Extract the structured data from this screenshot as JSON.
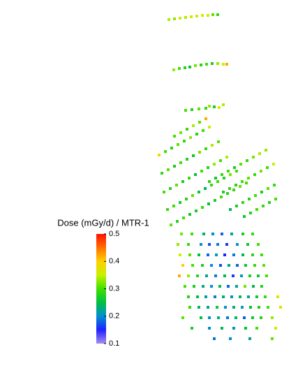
{
  "chart_data": {
    "type": "scatter",
    "colorbar_label": "Dose (mGy/d) / MTR-1",
    "clim": [
      0.1,
      0.5
    ],
    "cticks": [
      0.1,
      0.2,
      0.3,
      0.4,
      0.5
    ],
    "colormap": [
      "#a58ef0",
      "#2020ff",
      "#0090d0",
      "#00c040",
      "#40e000",
      "#c8f000",
      "#ffd000",
      "#ff7000",
      "#ff1000"
    ],
    "x": [
      242,
      250,
      258,
      266,
      274,
      282,
      290,
      298,
      305,
      312,
      249,
      257,
      265,
      272,
      280,
      288,
      296,
      304,
      312,
      320,
      325,
      266,
      275,
      285,
      295,
      300,
      307,
      314,
      320,
      250,
      259,
      268,
      277,
      286,
      295,
      228,
      237,
      246,
      255,
      264,
      273,
      282,
      291,
      300,
      232,
      241,
      250,
      259,
      268,
      277,
      286,
      295,
      304,
      313,
      235,
      244,
      253,
      262,
      271,
      280,
      289,
      298,
      307,
      316,
      325,
      240,
      249,
      258,
      267,
      276,
      285,
      294,
      303,
      312,
      321,
      330,
      339,
      245,
      254,
      263,
      272,
      281,
      290,
      299,
      308,
      317,
      326,
      335,
      344,
      353,
      300,
      309,
      318,
      327,
      336,
      345,
      354,
      363,
      372,
      381,
      320,
      329,
      338,
      347,
      356,
      365,
      374,
      383,
      392,
      330,
      339,
      348,
      357,
      366,
      375,
      384,
      393,
      350,
      359,
      368,
      377,
      386,
      395,
      260,
      275,
      292,
      305,
      318,
      332,
      348,
      362,
      255,
      270,
      288,
      300,
      312,
      325,
      340,
      355,
      370,
      258,
      272,
      285,
      298,
      310,
      322,
      335,
      348,
      362,
      375,
      262,
      276,
      290,
      303,
      316,
      328,
      340,
      352,
      365,
      378,
      257,
      270,
      283,
      296,
      309,
      322,
      334,
      346,
      358,
      370,
      382,
      265,
      278,
      291,
      303,
      315,
      327,
      339,
      351,
      363,
      375,
      270,
      283,
      295,
      308,
      320,
      332,
      344,
      356,
      368,
      380,
      398,
      272,
      285,
      298,
      311,
      323,
      335,
      347,
      359,
      371,
      384,
      402,
      262,
      288,
      300,
      313,
      326,
      338,
      350,
      362,
      374,
      390,
      275,
      300,
      318,
      335,
      352,
      368,
      395,
      307,
      330,
      358,
      390
    ],
    "y": [
      28,
      27,
      26,
      25,
      24,
      23,
      22,
      22,
      21,
      21,
      100,
      98,
      97,
      96,
      94,
      93,
      92,
      91,
      91,
      92,
      92,
      158,
      157,
      156,
      155,
      152,
      153,
      154,
      150,
      195,
      190,
      185,
      180,
      175,
      170,
      222,
      217,
      212,
      207,
      202,
      197,
      192,
      187,
      182,
      248,
      243,
      238,
      233,
      228,
      223,
      218,
      213,
      208,
      203,
      275,
      270,
      265,
      260,
      255,
      250,
      245,
      240,
      235,
      230,
      225,
      300,
      295,
      290,
      285,
      280,
      275,
      270,
      265,
      260,
      255,
      250,
      245,
      322,
      317,
      312,
      307,
      302,
      297,
      292,
      287,
      282,
      277,
      272,
      267,
      262,
      260,
      255,
      250,
      245,
      240,
      235,
      230,
      225,
      220,
      215,
      275,
      270,
      265,
      260,
      255,
      250,
      245,
      240,
      235,
      300,
      295,
      290,
      285,
      280,
      275,
      270,
      265,
      310,
      305,
      300,
      295,
      290,
      285,
      335,
      335,
      335,
      335,
      335,
      335,
      335,
      335,
      350,
      350,
      350,
      350,
      350,
      350,
      350,
      350,
      350,
      365,
      365,
      365,
      365,
      365,
      365,
      365,
      365,
      365,
      365,
      380,
      380,
      380,
      380,
      380,
      380,
      380,
      380,
      380,
      380,
      395,
      395,
      395,
      395,
      395,
      395,
      395,
      395,
      395,
      395,
      395,
      410,
      410,
      410,
      410,
      410,
      410,
      410,
      410,
      410,
      410,
      425,
      425,
      425,
      425,
      425,
      425,
      425,
      425,
      425,
      425,
      425,
      440,
      440,
      440,
      440,
      440,
      440,
      440,
      440,
      440,
      440,
      440,
      455,
      455,
      455,
      455,
      455,
      455,
      455,
      455,
      455,
      455,
      470,
      470,
      470,
      470,
      470,
      470,
      470,
      485,
      485,
      485,
      485
    ],
    "values": [
      0.34,
      0.33,
      0.35,
      0.34,
      0.36,
      0.35,
      0.37,
      0.36,
      0.31,
      0.29,
      0.33,
      0.3,
      0.28,
      0.26,
      0.32,
      0.28,
      0.3,
      0.27,
      0.33,
      0.35,
      0.42,
      0.3,
      0.28,
      0.31,
      0.29,
      0.33,
      0.27,
      0.36,
      0.34,
      0.3,
      0.32,
      0.29,
      0.34,
      0.31,
      0.42,
      0.38,
      0.3,
      0.28,
      0.31,
      0.29,
      0.33,
      0.28,
      0.3,
      0.35,
      0.29,
      0.31,
      0.27,
      0.3,
      0.28,
      0.26,
      0.32,
      0.29,
      0.34,
      0.31,
      0.3,
      0.28,
      0.31,
      0.27,
      0.29,
      0.25,
      0.3,
      0.28,
      0.33,
      0.3,
      0.34,
      0.29,
      0.3,
      0.27,
      0.28,
      0.31,
      0.26,
      0.24,
      0.29,
      0.3,
      0.28,
      0.32,
      0.3,
      0.31,
      0.28,
      0.3,
      0.26,
      0.27,
      0.29,
      0.25,
      0.27,
      0.3,
      0.28,
      0.29,
      0.31,
      0.3,
      0.28,
      0.26,
      0.29,
      0.3,
      0.27,
      0.31,
      0.29,
      0.32,
      0.34,
      0.33,
      0.27,
      0.29,
      0.28,
      0.3,
      0.31,
      0.29,
      0.32,
      0.3,
      0.36,
      0.24,
      0.27,
      0.29,
      0.28,
      0.3,
      0.27,
      0.31,
      0.29,
      0.26,
      0.28,
      0.3,
      0.29,
      0.28,
      0.3,
      0.32,
      0.3,
      0.24,
      0.2,
      0.18,
      0.22,
      0.27,
      0.29,
      0.33,
      0.29,
      0.2,
      0.17,
      0.19,
      0.16,
      0.21,
      0.26,
      0.3,
      0.35,
      0.31,
      0.25,
      0.18,
      0.21,
      0.15,
      0.19,
      0.24,
      0.28,
      0.3,
      0.4,
      0.3,
      0.27,
      0.2,
      0.17,
      0.22,
      0.18,
      0.26,
      0.29,
      0.31,
      0.42,
      0.33,
      0.28,
      0.22,
      0.19,
      0.24,
      0.16,
      0.21,
      0.27,
      0.26,
      0.3,
      0.3,
      0.27,
      0.23,
      0.2,
      0.25,
      0.18,
      0.22,
      0.32,
      0.24,
      0.28,
      0.28,
      0.25,
      0.21,
      0.19,
      0.23,
      0.2,
      0.24,
      0.22,
      0.26,
      0.29,
      0.37,
      0.29,
      0.24,
      0.22,
      0.26,
      0.2,
      0.23,
      0.21,
      0.25,
      0.27,
      0.3,
      0.38,
      0.31,
      0.25,
      0.2,
      0.23,
      0.19,
      0.24,
      0.18,
      0.26,
      0.28,
      0.33,
      0.27,
      0.2,
      0.24,
      0.21,
      0.25,
      0.3,
      0.36,
      0.19,
      0.2,
      0.22,
      0.31
    ]
  }
}
